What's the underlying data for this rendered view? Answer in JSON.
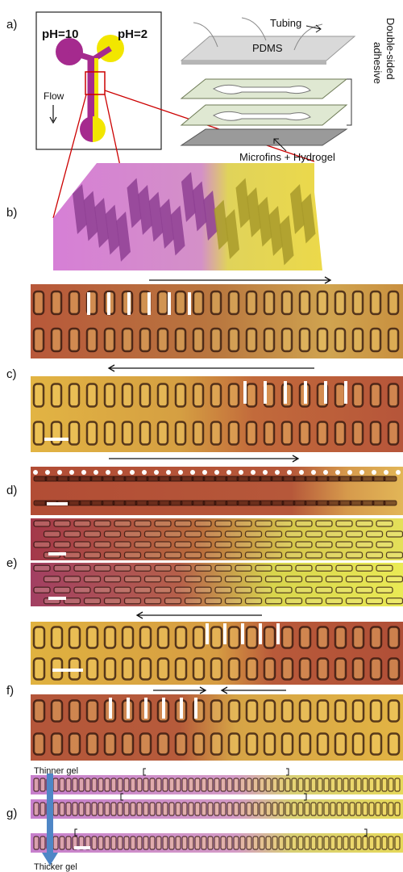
{
  "panels": {
    "a": {
      "label": "a)",
      "ph_left": "pH=10",
      "ph_right": "pH=2",
      "flow": "Flow",
      "tubing": "Tubing",
      "pdms": "PDMS",
      "adhesive_1": "Double-sided",
      "adhesive_2": "adhesive",
      "microfins": "Microfins + Hydrogel"
    },
    "b": {
      "label": "b)"
    },
    "c": {
      "label": "c)"
    },
    "d": {
      "label": "d)"
    },
    "e": {
      "label": "e)"
    },
    "f": {
      "label": "f)"
    },
    "g": {
      "label": "g)",
      "thinner": "Thinner gel",
      "thicker": "Thicker gel"
    }
  }
}
